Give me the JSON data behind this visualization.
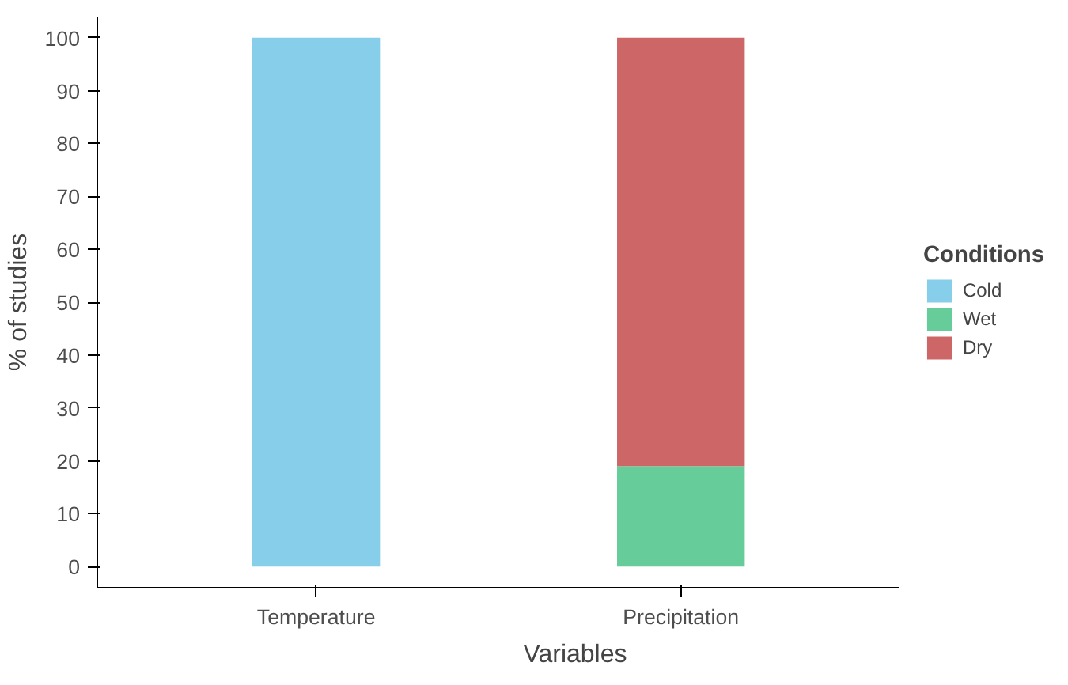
{
  "chart_data": {
    "type": "bar",
    "stacked": true,
    "xlabel": "Variables",
    "ylabel": "% of studies",
    "legend_title": "Conditions",
    "categories": [
      "Temperature",
      "Precipitation"
    ],
    "series": [
      {
        "name": "Cold",
        "color": "#87ceeb",
        "values": [
          100,
          0
        ]
      },
      {
        "name": "Wet",
        "color": "#66cd9a",
        "values": [
          0,
          19
        ]
      },
      {
        "name": "Dry",
        "color": "#cd6666",
        "values": [
          0,
          81
        ]
      }
    ],
    "ylim": [
      -4,
      104
    ],
    "yticks": [
      0,
      10,
      20,
      30,
      40,
      50,
      60,
      70,
      80,
      90,
      100
    ],
    "grid": false,
    "legend": "right"
  }
}
